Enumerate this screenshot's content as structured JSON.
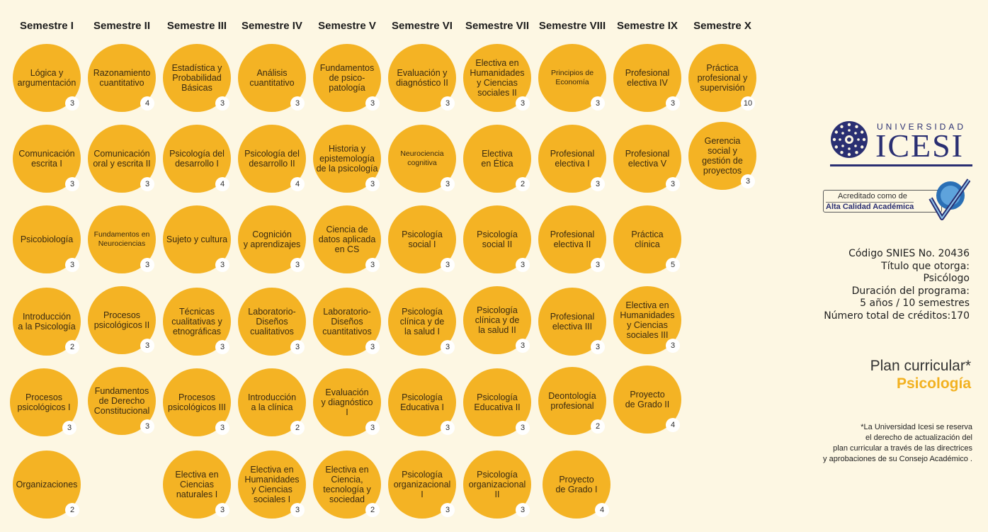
{
  "semesters": [
    "Semestre I",
    "Semestre II",
    "Semestre III",
    "Semestre IV",
    "Semestre V",
    "Semestre VI",
    "Semestre VII",
    "Semestre VIII",
    "Semestre IX",
    "Semestre X"
  ],
  "courses": [
    {
      "name": "Lógica y\nargumentación",
      "credits": "3"
    },
    {
      "name": "Razonamiento\ncuantitativo",
      "credits": "4"
    },
    {
      "name": "Estadística y\nProbabilidad\nBásicas",
      "credits": "3"
    },
    {
      "name": "Análisis\ncuantitativo",
      "credits": "3"
    },
    {
      "name": "Fundamentos\nde psico-\npatología",
      "credits": "3"
    },
    {
      "name": "Evaluación y\ndiagnóstico II",
      "credits": "3"
    },
    {
      "name": "Electiva en\nHumanidades\ny Ciencias\nsociales II",
      "credits": "3"
    },
    {
      "name": "Principios de\nEconomía",
      "credits": "3"
    },
    {
      "name": "Profesional\nelectiva IV",
      "credits": "3"
    },
    {
      "name": "Práctica\nprofesional y\nsupervisión",
      "credits": "10"
    },
    {
      "name": "Comunicación\nescrita I",
      "credits": "3"
    },
    {
      "name": "Comunicación\noral y escrita II",
      "credits": "3"
    },
    {
      "name": "Psicología del\ndesarrollo I",
      "credits": "4"
    },
    {
      "name": "Psicología del\ndesarrollo II",
      "credits": "4"
    },
    {
      "name": "Historia y\nepistemología\nde la psicología",
      "credits": "3"
    },
    {
      "name": "Neurociencia\ncognitiva",
      "credits": "3"
    },
    {
      "name": "Electiva\nen Ética",
      "credits": "2"
    },
    {
      "name": "Profesional\nelectiva I",
      "credits": "3"
    },
    {
      "name": "Profesional\nelectiva V",
      "credits": "3"
    },
    {
      "name": "Gerencia\nsocial y\ngestión de\nproyectos",
      "credits": "3"
    },
    {
      "name": "Psicobiología",
      "credits": "3"
    },
    {
      "name": "Fundamentos en\nNeurociencias",
      "credits": "3"
    },
    {
      "name": "Sujeto y cultura",
      "credits": "3"
    },
    {
      "name": "Cognición\ny aprendizajes",
      "credits": "3"
    },
    {
      "name": "Ciencia de\ndatos aplicada\nen CS",
      "credits": "3"
    },
    {
      "name": "Psicología\nsocial I",
      "credits": "3"
    },
    {
      "name": "Psicología\nsocial II",
      "credits": "3"
    },
    {
      "name": "Profesional\nelectiva II",
      "credits": "3"
    },
    {
      "name": "Práctica\nclínica",
      "credits": "5"
    },
    {
      "name": "Introducción\na la Psicología",
      "credits": "2"
    },
    {
      "name": "Procesos\npsicológicos II",
      "credits": "3"
    },
    {
      "name": "Técnicas\ncualitativas y\netnográficas",
      "credits": "3"
    },
    {
      "name": "Laboratorio-\nDiseños\ncualitativos",
      "credits": "3"
    },
    {
      "name": "Laboratorio-\nDiseños\ncuantitativos",
      "credits": "3"
    },
    {
      "name": "Psicología\nclínica y de\nla salud I",
      "credits": "3"
    },
    {
      "name": "Psicología\nclínica y de\nla salud II",
      "credits": "3"
    },
    {
      "name": "Profesional\nelectiva III",
      "credits": "3"
    },
    {
      "name": "Electiva en\nHumanidades\ny Ciencias\nsociales III",
      "credits": "3"
    },
    {
      "name": "Procesos\npsicológicos I",
      "credits": "3"
    },
    {
      "name": "Fundamentos\nde Derecho\nConstitucional",
      "credits": "3"
    },
    {
      "name": "Procesos\npsicológicos III",
      "credits": "3"
    },
    {
      "name": "Introducción\na la clínica",
      "credits": "2"
    },
    {
      "name": "Evaluación\ny diagnóstico\nI",
      "credits": "3"
    },
    {
      "name": "Psicología\nEducativa I",
      "credits": "3"
    },
    {
      "name": "Psicología\nEducativa II",
      "credits": "3"
    },
    {
      "name": "Deontología\nprofesional",
      "credits": "2"
    },
    {
      "name": "Proyecto\nde Grado II",
      "credits": "4"
    },
    {
      "name": "Organizaciones",
      "credits": "2"
    },
    {
      "name": "Electiva en\nCiencias\nnaturales I",
      "credits": "3"
    },
    {
      "name": "Electiva en\nHumanidades\ny Ciencias\nsociales I",
      "credits": "3"
    },
    {
      "name": "Electiva en\nCiencia,\ntecnología y\nsociedad",
      "credits": "2"
    },
    {
      "name": "Psicología\norganizacional\nI",
      "credits": "3"
    },
    {
      "name": "Psicología\norganizacional\nII",
      "credits": "3"
    },
    {
      "name": "Proyecto\nde Grado I",
      "credits": "4"
    }
  ],
  "brand": {
    "universidad": "UNIVERSIDAD",
    "icesi": "ICESI",
    "accred_line1": "Acreditado como de",
    "accred_line2": "Alta Calidad Académica",
    "primary_color": "#2a2f72",
    "accent_color": "#f4b324"
  },
  "info": {
    "snies": "Código SNIES No. 20436",
    "titulo_label": "Título que otorga:",
    "titulo_value": "Psicólogo",
    "duracion_label": "Duración del programa:",
    "duracion_value": "5 años / 10 semestres",
    "creditos": "Número total de créditos:170"
  },
  "plan": {
    "title": "Plan curricular*",
    "program": "Psicología"
  },
  "footnote": [
    "*La Universidad Icesi se reserva",
    "el derecho de actualización del",
    "plan curricular a través de las directrices",
    "y aprobaciones de su Consejo Académico ."
  ]
}
